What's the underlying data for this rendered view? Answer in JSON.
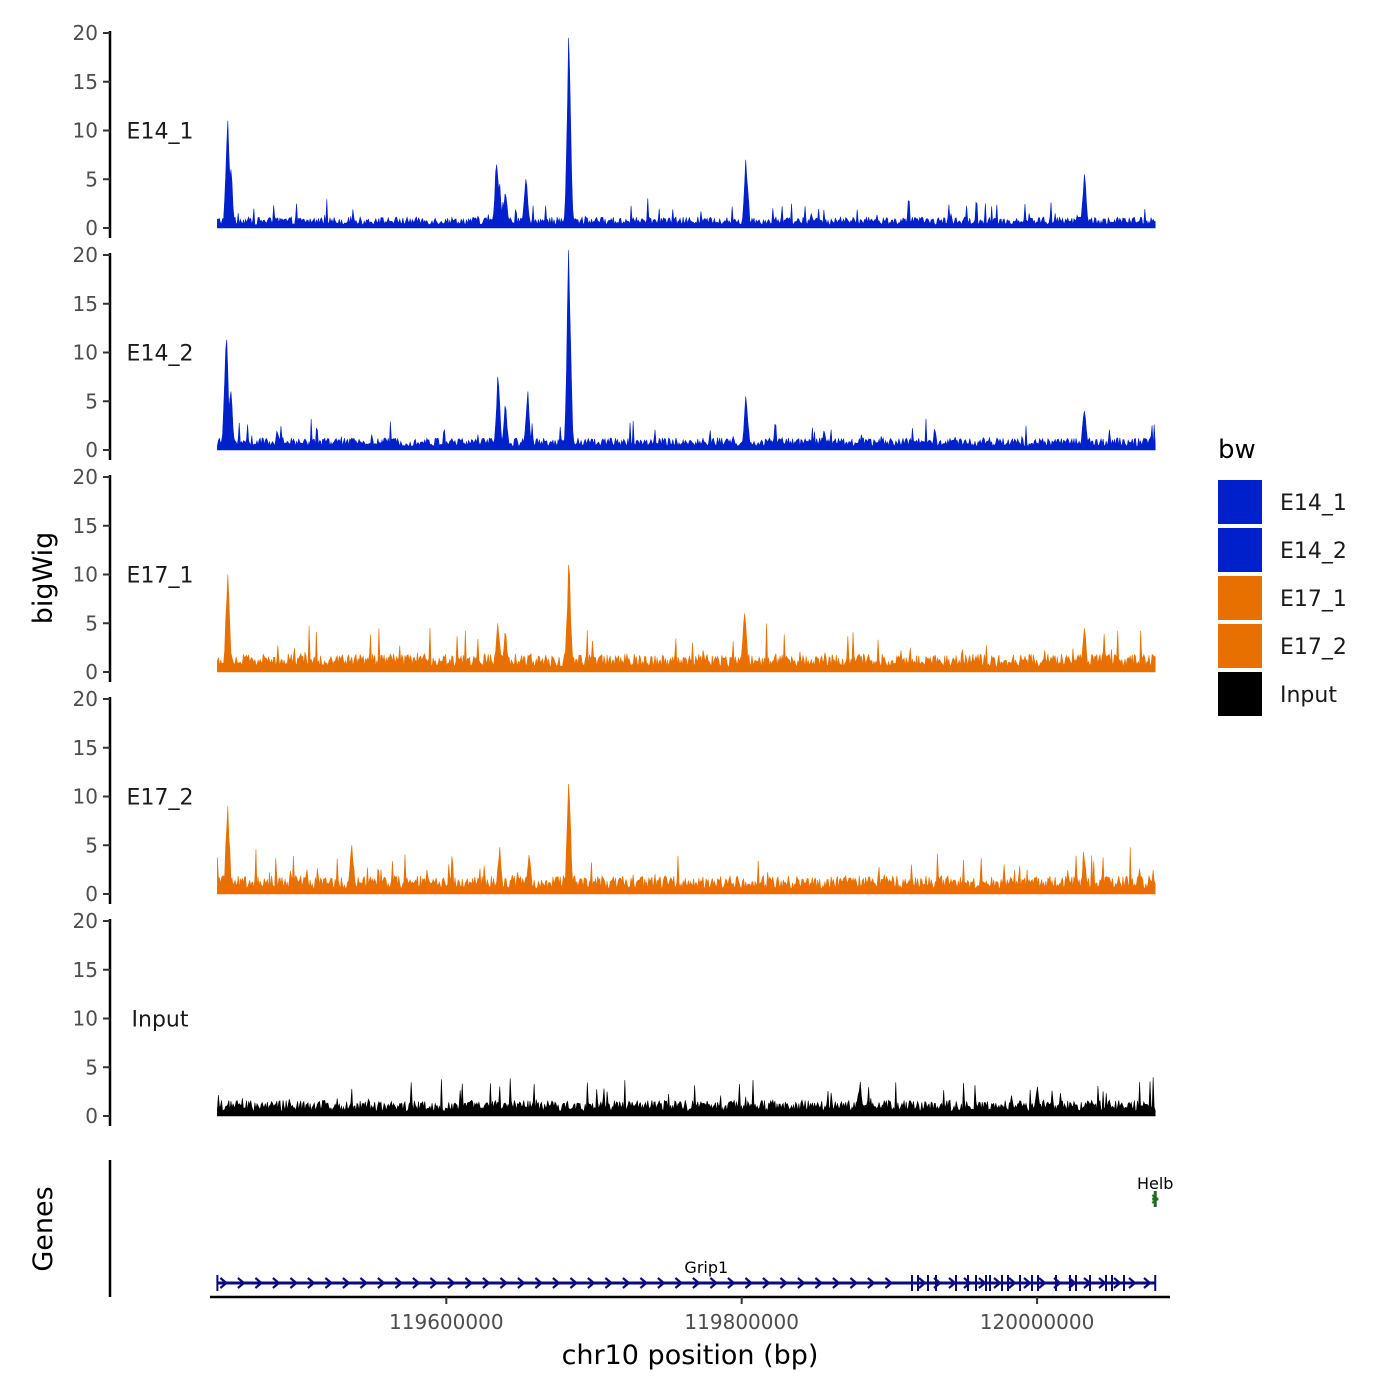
{
  "chart_data": {
    "type": "area",
    "chromosome": "chr10",
    "xlabel": "chr10 position (bp)",
    "ylabel": "bigWig",
    "genes_label": "Genes",
    "xlim": [
      119440000,
      120090000
    ],
    "x_ticks": [
      119600000,
      119800000,
      120000000
    ],
    "x_tick_labels": [
      "119600000",
      "119800000",
      "120000000"
    ],
    "ylim": [
      0,
      20
    ],
    "y_ticks": [
      0,
      5,
      10,
      15,
      20
    ],
    "y_tick_labels": [
      "0",
      "5",
      "10",
      "15",
      "20"
    ],
    "data_range": [
      119445000,
      120080000
    ],
    "legend": {
      "title": "bw",
      "entries": [
        {
          "name": "E14_1",
          "color": "#0020CC"
        },
        {
          "name": "E14_2",
          "color": "#0020CC"
        },
        {
          "name": "E17_1",
          "color": "#E87000"
        },
        {
          "name": "E17_2",
          "color": "#E87000"
        },
        {
          "name": "Input",
          "color": "#000000"
        }
      ]
    },
    "series": [
      {
        "name": "E14_1",
        "color": "#0020CC",
        "baseline": 0.9,
        "peaks": [
          {
            "x": 119452000,
            "y": 11.0
          },
          {
            "x": 119454000,
            "y": 6.0
          },
          {
            "x": 119634000,
            "y": 6.5
          },
          {
            "x": 119636000,
            "y": 4.5
          },
          {
            "x": 119640000,
            "y": 3.5
          },
          {
            "x": 119654000,
            "y": 5.0
          },
          {
            "x": 119683000,
            "y": 19.5
          },
          {
            "x": 119803000,
            "y": 7.0
          },
          {
            "x": 120032000,
            "y": 5.5
          }
        ]
      },
      {
        "name": "E14_2",
        "color": "#0020CC",
        "baseline": 1.0,
        "peaks": [
          {
            "x": 119451000,
            "y": 11.3
          },
          {
            "x": 119454000,
            "y": 6.0
          },
          {
            "x": 119635000,
            "y": 7.5
          },
          {
            "x": 119640000,
            "y": 4.5
          },
          {
            "x": 119655000,
            "y": 6.0
          },
          {
            "x": 119683000,
            "y": 20.5
          },
          {
            "x": 119803000,
            "y": 5.5
          },
          {
            "x": 120032000,
            "y": 4.0
          }
        ]
      },
      {
        "name": "E17_1",
        "color": "#E87000",
        "baseline": 1.5,
        "peaks": [
          {
            "x": 119452000,
            "y": 10.0
          },
          {
            "x": 119635000,
            "y": 5.0
          },
          {
            "x": 119640000,
            "y": 4.0
          },
          {
            "x": 119683000,
            "y": 11.0
          },
          {
            "x": 119802000,
            "y": 6.0
          },
          {
            "x": 120032000,
            "y": 4.5
          }
        ]
      },
      {
        "name": "E17_2",
        "color": "#E87000",
        "baseline": 1.5,
        "peaks": [
          {
            "x": 119452000,
            "y": 9.0
          },
          {
            "x": 119536000,
            "y": 5.0
          },
          {
            "x": 119636000,
            "y": 4.8
          },
          {
            "x": 119656000,
            "y": 4.0
          },
          {
            "x": 119683000,
            "y": 11.3
          },
          {
            "x": 120032000,
            "y": 3.5
          }
        ]
      },
      {
        "name": "Input",
        "color": "#000000",
        "baseline": 1.3,
        "peaks": [
          {
            "x": 119880000,
            "y": 3.5
          },
          {
            "x": 120000000,
            "y": 3.0
          }
        ]
      }
    ],
    "genes": [
      {
        "name": "Grip1",
        "start": 119445000,
        "end": 120080000,
        "strand": "+",
        "color": "#0A0A80",
        "row": 0
      },
      {
        "name": "Helb",
        "start": 120078000,
        "end": 120082000,
        "strand": "+",
        "color": "#1E6B1E",
        "row": 1
      }
    ]
  }
}
